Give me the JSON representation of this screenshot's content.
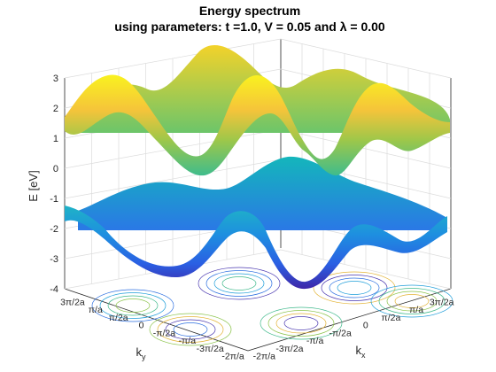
{
  "chart_data": {
    "type": "surface",
    "title_line1": "Energy spectrum",
    "title_line2": "using parameters: t =1.0, V = 0.05 and λ = 0.00",
    "parameters": {
      "t": 1.0,
      "V": 0.05,
      "lambda": 0.0
    },
    "zlabel": "E [eV]",
    "xlabel": "k",
    "xlabel_sub": "x",
    "ylabel": "k",
    "ylabel_sub": "y",
    "zlim": [
      -4,
      3
    ],
    "zticks": [
      "3",
      "2",
      "1",
      "0",
      "-1",
      "-2",
      "-3",
      "-4"
    ],
    "xticks": [
      "-2π/a",
      "-3π/2a",
      "-π/a",
      "-π/2a",
      "0",
      "π/2a",
      "π/a",
      "3π/2a"
    ],
    "yticks": [
      "-2π/a",
      "-3π/2a",
      "-π/a",
      "-π/2a",
      "0",
      "π/2a",
      "π/a",
      "3π/2a"
    ],
    "grid": true,
    "colormap": "parula",
    "colors": {
      "band_top": "#f9e129",
      "band_mid": "#35b89a",
      "band_low": "#2d5fe0",
      "band_bottom": "#3e26a8"
    },
    "series": [
      {
        "name": "",
        "band": "upper",
        "approx_range": [
          0.5,
          3.0
        ]
      },
      {
        "name": "",
        "band": "lower",
        "approx_range": [
          -3.3,
          -0.5
        ]
      }
    ],
    "contour_projection": true
  }
}
